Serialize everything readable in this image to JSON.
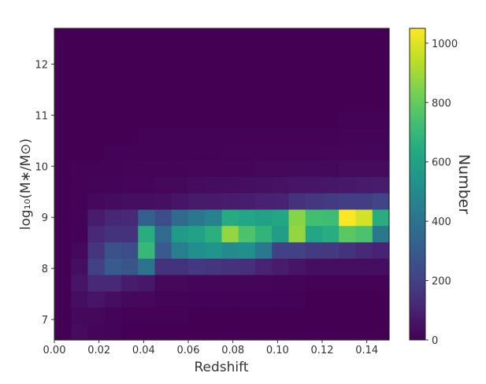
{
  "chart_data": {
    "type": "heatmap",
    "title": "",
    "xlabel": "Redshift",
    "ylabel": "log₁₀(M∗/M⊙)",
    "xlim": [
      0.0,
      0.15
    ],
    "ylim": [
      6.6,
      12.7
    ],
    "x_ticks": [
      "0.00",
      "0.02",
      "0.04",
      "0.06",
      "0.08",
      "0.10",
      "0.12",
      "0.14"
    ],
    "y_ticks": [
      "7",
      "8",
      "9",
      "10",
      "11",
      "12"
    ],
    "x_bin_edges": [
      0.0,
      0.0075,
      0.015,
      0.0225,
      0.03,
      0.0375,
      0.045,
      0.0525,
      0.06,
      0.0675,
      0.075,
      0.0825,
      0.09,
      0.0975,
      0.105,
      0.1125,
      0.12,
      0.1275,
      0.135,
      0.1425,
      0.15
    ],
    "y_bin_edges": [
      6.6,
      6.92,
      7.24,
      7.56,
      7.88,
      8.2,
      8.52,
      8.84,
      9.16,
      9.48,
      9.8,
      10.12,
      10.44,
      10.76,
      11.08,
      11.4,
      11.72,
      12.04,
      12.36,
      12.7
    ],
    "counts": [
      [
        0,
        30,
        15,
        8,
        0,
        0,
        0,
        0,
        0,
        0,
        0,
        0,
        0,
        0,
        0,
        0,
        0,
        0,
        0,
        0
      ],
      [
        0,
        25,
        20,
        10,
        5,
        5,
        5,
        5,
        0,
        0,
        0,
        0,
        0,
        0,
        0,
        0,
        0,
        0,
        0,
        0
      ],
      [
        0,
        40,
        60,
        40,
        25,
        20,
        10,
        10,
        5,
        5,
        5,
        5,
        5,
        5,
        5,
        0,
        0,
        0,
        0,
        0
      ],
      [
        0,
        60,
        120,
        120,
        80,
        70,
        20,
        20,
        15,
        15,
        15,
        15,
        15,
        10,
        10,
        5,
        5,
        5,
        5,
        5
      ],
      [
        0,
        40,
        200,
        300,
        280,
        400,
        150,
        150,
        170,
        160,
        150,
        140,
        100,
        80,
        60,
        40,
        40,
        40,
        40,
        40
      ],
      [
        0,
        20,
        160,
        260,
        250,
        700,
        300,
        450,
        520,
        540,
        500,
        520,
        420,
        200,
        200,
        180,
        170,
        150,
        120,
        100
      ],
      [
        0,
        5,
        120,
        150,
        150,
        650,
        360,
        570,
        600,
        660,
        880,
        750,
        680,
        580,
        880,
        620,
        650,
        780,
        750,
        420
      ],
      [
        0,
        5,
        80,
        110,
        120,
        320,
        250,
        360,
        420,
        460,
        640,
        620,
        600,
        620,
        860,
        730,
        720,
        1050,
        980,
        650
      ],
      [
        0,
        5,
        25,
        30,
        40,
        40,
        45,
        60,
        75,
        75,
        80,
        85,
        95,
        100,
        150,
        165,
        180,
        190,
        190,
        210
      ],
      [
        0,
        5,
        10,
        10,
        15,
        15,
        20,
        25,
        30,
        35,
        35,
        40,
        45,
        50,
        60,
        60,
        65,
        70,
        75,
        80
      ],
      [
        0,
        5,
        5,
        5,
        10,
        10,
        10,
        10,
        15,
        15,
        15,
        15,
        20,
        20,
        25,
        25,
        25,
        30,
        30,
        30
      ],
      [
        0,
        0,
        0,
        5,
        5,
        5,
        5,
        5,
        5,
        5,
        10,
        10,
        10,
        10,
        10,
        10,
        15,
        15,
        15,
        15
      ],
      [
        0,
        0,
        0,
        0,
        0,
        5,
        5,
        5,
        5,
        5,
        5,
        5,
        5,
        5,
        5,
        5,
        5,
        10,
        10,
        10
      ],
      [
        0,
        0,
        0,
        0,
        0,
        0,
        0,
        0,
        0,
        0,
        0,
        0,
        0,
        0,
        0,
        0,
        0,
        5,
        5,
        5
      ],
      [
        0,
        0,
        0,
        0,
        0,
        0,
        0,
        0,
        0,
        0,
        0,
        0,
        0,
        0,
        0,
        0,
        0,
        0,
        0,
        0
      ],
      [
        0,
        0,
        0,
        0,
        0,
        0,
        0,
        0,
        0,
        0,
        0,
        0,
        0,
        0,
        0,
        0,
        0,
        0,
        0,
        0
      ],
      [
        0,
        0,
        0,
        0,
        0,
        0,
        0,
        0,
        0,
        0,
        0,
        0,
        0,
        0,
        0,
        0,
        0,
        0,
        0,
        0
      ],
      [
        0,
        0,
        0,
        0,
        0,
        0,
        0,
        0,
        0,
        0,
        0,
        0,
        0,
        0,
        0,
        0,
        0,
        0,
        0,
        0
      ],
      [
        0,
        0,
        0,
        0,
        0,
        0,
        0,
        0,
        0,
        0,
        0,
        0,
        0,
        0,
        0,
        0,
        0,
        0,
        0,
        0
      ]
    ],
    "colormap": "viridis",
    "colorbar": {
      "label": "Number",
      "range": [
        0,
        1050
      ],
      "ticks": [
        "0",
        "200",
        "400",
        "600",
        "800",
        "1000"
      ]
    },
    "grid": false
  }
}
